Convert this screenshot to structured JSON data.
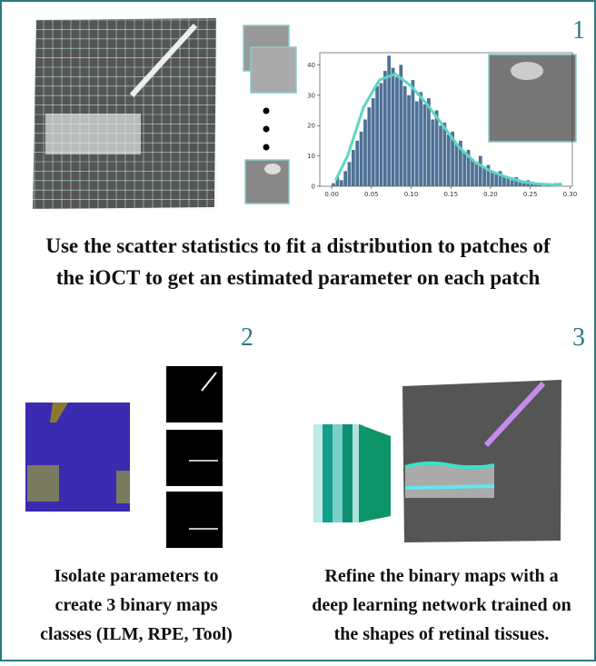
{
  "panels": [
    {
      "number": "1",
      "caption_lines": [
        "Use the scatter statistics to fit a distribution to patches of",
        "the iOCT to get an estimated parameter on each patch"
      ]
    },
    {
      "number": "2",
      "caption_lines": [
        "Isolate parameters to",
        "create 3 binary maps",
        "classes (ILM, RPE, Tool)"
      ]
    },
    {
      "number": "3",
      "caption_lines": [
        "Refine the binary maps with a",
        "deep learning network trained on",
        "the shapes of retinal tissues."
      ]
    }
  ],
  "histogram": {
    "type": "histogram",
    "bins": [
      0.0,
      0.005,
      0.01,
      0.015,
      0.02,
      0.025,
      0.03,
      0.035,
      0.04,
      0.045,
      0.05,
      0.055,
      0.06,
      0.065,
      0.07,
      0.075,
      0.08,
      0.085,
      0.09,
      0.095,
      0.1,
      0.105,
      0.11,
      0.115,
      0.12,
      0.125,
      0.13,
      0.135,
      0.14,
      0.145,
      0.15,
      0.155,
      0.16,
      0.165,
      0.17,
      0.175,
      0.18,
      0.185,
      0.19,
      0.195,
      0.2,
      0.205,
      0.21,
      0.215,
      0.22,
      0.225,
      0.23,
      0.235,
      0.24,
      0.245,
      0.25,
      0.255,
      0.26,
      0.265,
      0.27,
      0.275,
      0.28,
      0.285,
      0.29,
      0.295,
      0.3
    ],
    "counts": [
      1,
      3,
      2,
      5,
      8,
      12,
      15,
      18,
      22,
      26,
      29,
      33,
      34,
      38,
      43,
      39,
      36,
      40,
      33,
      30,
      35,
      28,
      31,
      27,
      29,
      22,
      25,
      20,
      21,
      17,
      18,
      14,
      15,
      11,
      12,
      9,
      8,
      10,
      6,
      7,
      5,
      4,
      5,
      3,
      3,
      2,
      3,
      2,
      1,
      2,
      1,
      1,
      1,
      0,
      1,
      0,
      1,
      1,
      0,
      0
    ],
    "fit": {
      "x": [
        0.005,
        0.02,
        0.04,
        0.06,
        0.08,
        0.1,
        0.12,
        0.14,
        0.16,
        0.18,
        0.2,
        0.22,
        0.24,
        0.26,
        0.29
      ],
      "y": [
        2,
        10,
        26,
        35,
        37,
        33,
        27,
        20,
        13,
        8,
        5,
        3,
        1.5,
        0.8,
        0.3
      ]
    },
    "xlim": [
      -0.015,
      0.303
    ],
    "ylim": [
      0,
      44
    ],
    "xticks": [
      {
        "value": 0,
        "label": "0.00"
      },
      {
        "value": 0.05,
        "label": "0.05"
      },
      {
        "value": 0.1,
        "label": "0.10"
      },
      {
        "value": 0.15,
        "label": "0.15"
      },
      {
        "value": 0.2,
        "label": "0.20"
      },
      {
        "value": 0.25,
        "label": "0.25"
      },
      {
        "value": 0.3,
        "label": "0.30"
      }
    ],
    "yticks": [
      0,
      10,
      20,
      30,
      40
    ],
    "color": "#4e7296",
    "fit_color": "#5dd6c6"
  }
}
